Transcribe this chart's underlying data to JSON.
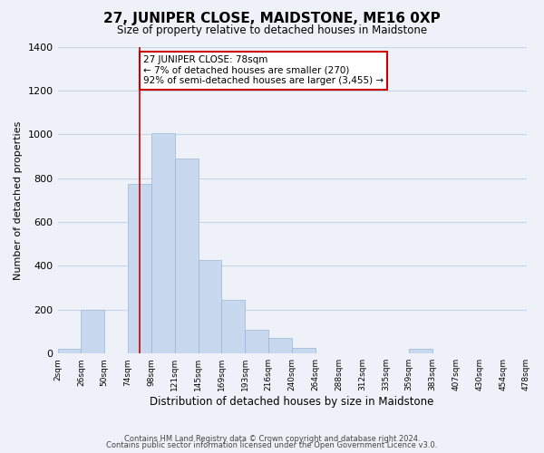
{
  "title": "27, JUNIPER CLOSE, MAIDSTONE, ME16 0XP",
  "subtitle": "Size of property relative to detached houses in Maidstone",
  "xlabel": "Distribution of detached houses by size in Maidstone",
  "ylabel": "Number of detached properties",
  "tick_labels": [
    "2sqm",
    "26sqm",
    "50sqm",
    "74sqm",
    "98sqm",
    "121sqm",
    "145sqm",
    "169sqm",
    "193sqm",
    "216sqm",
    "240sqm",
    "264sqm",
    "288sqm",
    "312sqm",
    "335sqm",
    "359sqm",
    "383sqm",
    "407sqm",
    "430sqm",
    "454sqm",
    "478sqm"
  ],
  "bar_heights": [
    20,
    200,
    0,
    775,
    1005,
    890,
    425,
    245,
    110,
    70,
    25,
    0,
    0,
    0,
    0,
    20,
    0,
    0,
    0,
    0
  ],
  "bar_color": "#c8d8ee",
  "bar_edge_color": "#9ab4d4",
  "grid_color": "#c8d4e8",
  "bg_color": "#eef2f8",
  "property_line_bin": 3.5,
  "property_line_color": "#cc0000",
  "annotation_text": "27 JUNIPER CLOSE: 78sqm\n← 7% of detached houses are smaller (270)\n92% of semi-detached houses are larger (3,455) →",
  "annotation_box_color": "#ffffff",
  "annotation_box_edge": "#cc0000",
  "ylim": [
    0,
    1400
  ],
  "yticks": [
    0,
    200,
    400,
    600,
    800,
    1000,
    1200,
    1400
  ],
  "footer_line1": "Contains HM Land Registry data © Crown copyright and database right 2024.",
  "footer_line2": "Contains public sector information licensed under the Open Government Licence v3.0."
}
